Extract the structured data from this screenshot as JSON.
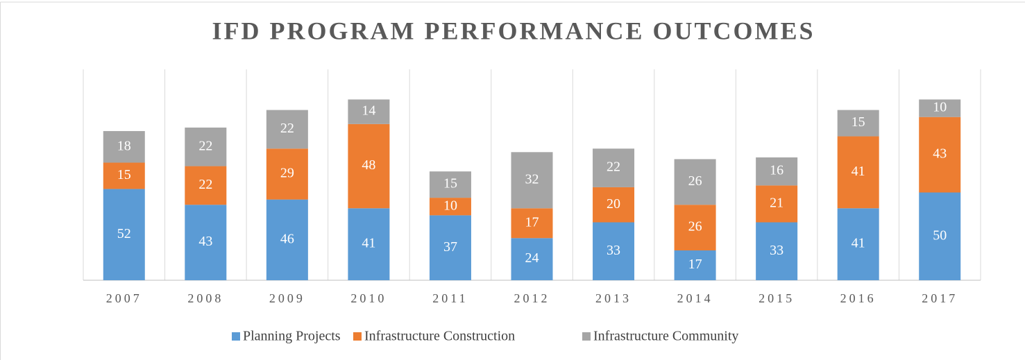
{
  "chart_data": {
    "type": "stacked_bar",
    "title": "IFD PROGRAM PERFORMANCE OUTCOMES",
    "categories": [
      "2007",
      "2008",
      "2009",
      "2010",
      "2011",
      "2012",
      "2013",
      "2014",
      "2015",
      "2016",
      "2017"
    ],
    "series": [
      {
        "name": "Planning Projects",
        "color": "#5b9bd5",
        "values": [
          52,
          43,
          46,
          41,
          37,
          24,
          33,
          17,
          33,
          41,
          50
        ]
      },
      {
        "name": "Infrastructure Construction",
        "color": "#ed7d31",
        "values": [
          15,
          22,
          29,
          48,
          10,
          17,
          20,
          26,
          21,
          41,
          43
        ]
      },
      {
        "name": "Infrastructure Community",
        "color": "#a5a5a5",
        "values": [
          18,
          22,
          22,
          14,
          15,
          32,
          22,
          26,
          16,
          15,
          10
        ]
      }
    ],
    "legend": "bottom"
  }
}
